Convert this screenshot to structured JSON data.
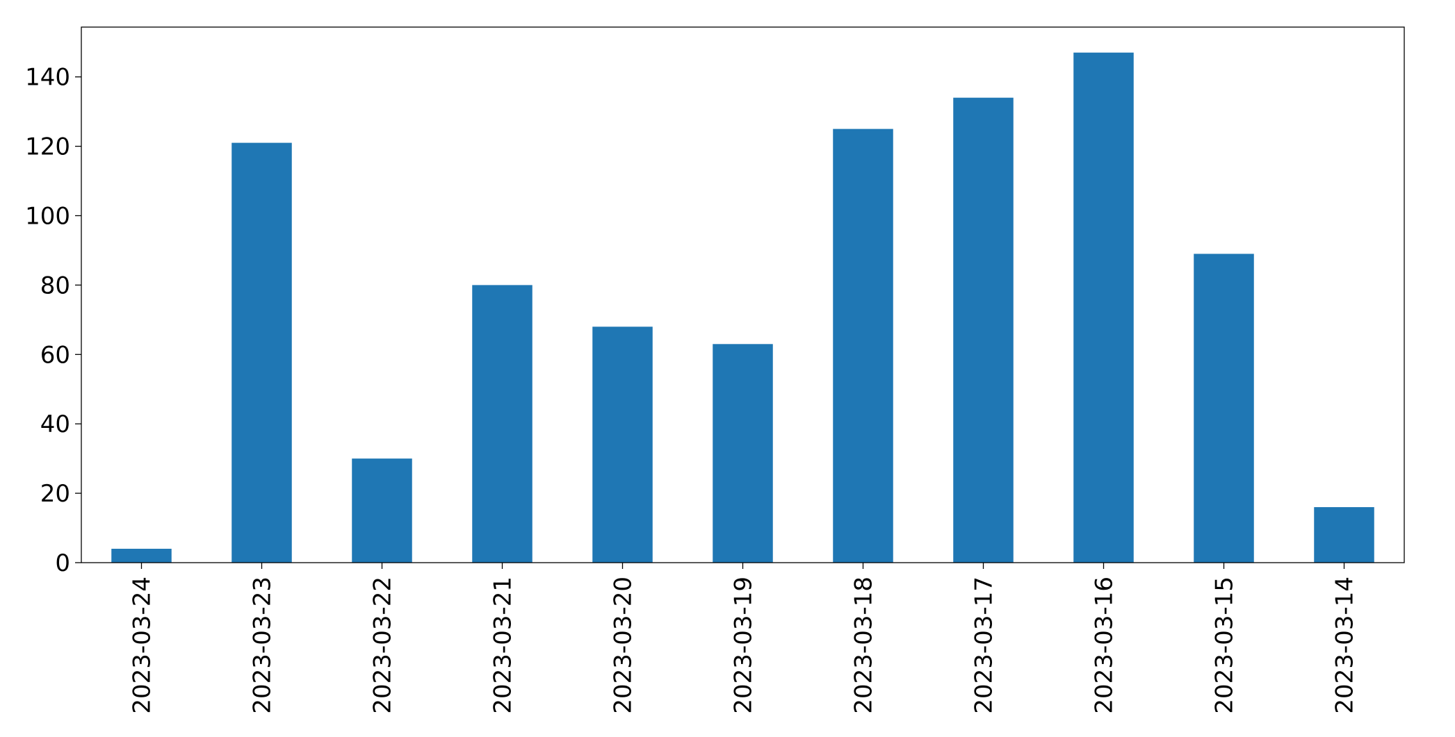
{
  "chart_data": {
    "type": "bar",
    "categories": [
      "2023-03-24",
      "2023-03-23",
      "2023-03-22",
      "2023-03-21",
      "2023-03-20",
      "2023-03-19",
      "2023-03-18",
      "2023-03-17",
      "2023-03-16",
      "2023-03-15",
      "2023-03-14"
    ],
    "values": [
      4,
      121,
      30,
      80,
      68,
      63,
      125,
      134,
      147,
      89,
      16
    ],
    "title": "",
    "xlabel": "",
    "ylabel": "",
    "ylim": [
      0,
      154.35
    ],
    "yticks": [
      0,
      20,
      40,
      60,
      80,
      100,
      120,
      140
    ],
    "grid": false,
    "legend": "none",
    "bar_color": "#1f77b4"
  }
}
